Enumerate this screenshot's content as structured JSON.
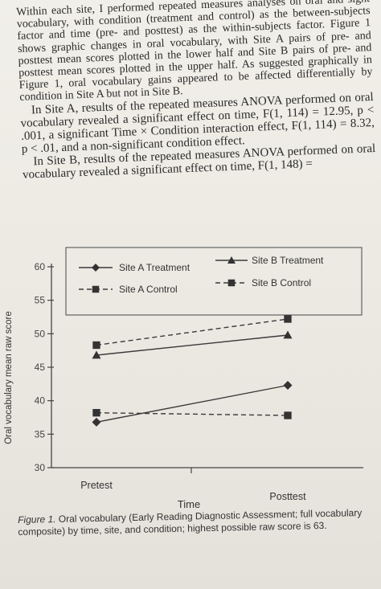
{
  "text": {
    "para1": "Within each site, I performed repeated measures analyses on oral and sight vocabulary, with condition (treatment and control) as the between-subjects factor and time (pre- and posttest) as the within-subjects factor. Figure 1 shows graphic changes in oral vocabulary, with Site A pairs of pre- and posttest mean scores plotted in the lower half and Site B pairs of pre- and posttest mean scores plotted in the upper half. As suggested graphically in Figure 1, oral vocabulary gains appeared to be affected differentially by condition in Site A but not in Site B.",
    "para2": "In Site A, results of the repeated measures ANOVA performed on oral vocabulary revealed a significant effect on time, F(1, 114) = 12.95, p < .001, a significant Time × Condition interaction effect, F(1, 114) = 8.32, p < .01, and a non-significant condition effect.",
    "para3": "In Site B, results of the repeated measures ANOVA performed on oral vocabulary revealed a significant effect on time, F(1, 148) ="
  },
  "caption": {
    "label": "Figure 1.",
    "text": " Oral vocabulary (Early Reading Diagnostic Assessment; full vocabulary composite) by time, site, and condition; highest possible raw score is 63."
  },
  "chart_data": {
    "type": "line",
    "title": "",
    "xlabel": "Time",
    "ylabel": "Oral vocabulary mean raw score",
    "categories": [
      "Pretest",
      "Posttest"
    ],
    "ylim": [
      30,
      60
    ],
    "yticks": [
      30,
      35,
      40,
      45,
      50,
      55,
      60
    ],
    "legend_placement": "top",
    "grid": false,
    "series": [
      {
        "name": "Site A Treatment",
        "values": [
          36.8,
          42.3
        ],
        "marker": "diamond",
        "dash": "solid",
        "color": "#3a3a3a"
      },
      {
        "name": "Site A Control",
        "values": [
          38.2,
          37.8
        ],
        "marker": "square",
        "dash": "dashed",
        "color": "#3a3a3a"
      },
      {
        "name": "Site B Treatment",
        "values": [
          46.8,
          49.8
        ],
        "marker": "triangle",
        "dash": "solid",
        "color": "#3a3a3a"
      },
      {
        "name": "Site B Control",
        "values": [
          48.3,
          52.2
        ],
        "marker": "square",
        "dash": "dashed",
        "color": "#3a3a3a"
      }
    ]
  }
}
